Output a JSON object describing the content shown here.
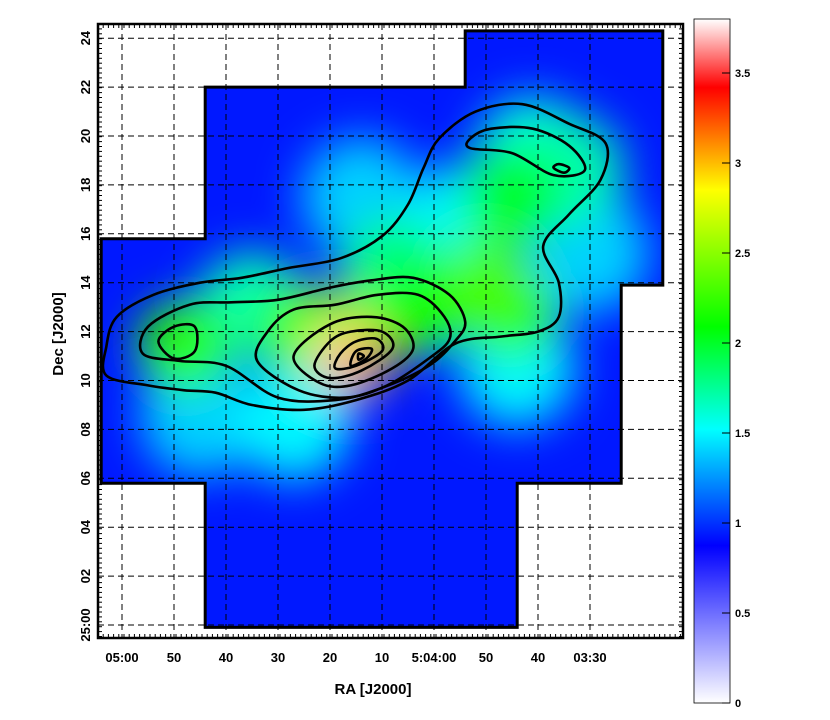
{
  "chart_data": {
    "type": "heatmap",
    "title": "",
    "xlabel": "RA [J2000]",
    "ylabel": "Dec [J2000]",
    "x_ticks": [
      {
        "v": 0,
        "label": "05:00"
      },
      {
        "v": 1,
        "label": "50"
      },
      {
        "v": 2,
        "label": "40"
      },
      {
        "v": 3,
        "label": "30"
      },
      {
        "v": 4,
        "label": "20"
      },
      {
        "v": 5,
        "label": "10"
      },
      {
        "v": 6,
        "label": "5:04:00"
      },
      {
        "v": 7,
        "label": "50"
      },
      {
        "v": 8,
        "label": "40"
      },
      {
        "v": 9,
        "label": "03:30"
      }
    ],
    "y_ticks": [
      {
        "v": 0,
        "label": "25:00"
      },
      {
        "v": 2,
        "label": "02"
      },
      {
        "v": 4,
        "label": "04"
      },
      {
        "v": 6,
        "label": "06"
      },
      {
        "v": 8,
        "label": "08"
      },
      {
        "v": 10,
        "label": "10"
      },
      {
        "v": 12,
        "label": "12"
      },
      {
        "v": 14,
        "label": "14"
      },
      {
        "v": 16,
        "label": "16"
      },
      {
        "v": 18,
        "label": "18"
      },
      {
        "v": 20,
        "label": "20"
      },
      {
        "v": 22,
        "label": "22"
      },
      {
        "v": 24,
        "label": "24"
      }
    ],
    "xlim": [
      -0.5,
      10.5
    ],
    "ylim": [
      -0.3,
      24.6
    ],
    "grid": true,
    "colorbar": {
      "range": [
        0,
        3.8
      ],
      "ticks": [
        0,
        0.5,
        1,
        1.5,
        2,
        2.5,
        3,
        3.5
      ],
      "tick_labels": [
        "0",
        "0.5",
        "1",
        "1.5",
        "2",
        "2.5",
        "3",
        "3.5"
      ],
      "colors": [
        "#ffffff",
        "#0000ff",
        "#00ffff",
        "#00ff00",
        "#ffff00",
        "#ff0000",
        "#ffffff"
      ],
      "color_stops": [
        0,
        0.23,
        0.4,
        0.55,
        0.75,
        0.9,
        1
      ]
    },
    "coverage_outline": [
      [
        -0.4,
        5.8
      ],
      [
        -0.4,
        15.8
      ],
      [
        1.6,
        15.8
      ],
      [
        1.6,
        22.0
      ],
      [
        6.6,
        22.0
      ],
      [
        6.6,
        24.3
      ],
      [
        10.4,
        24.3
      ],
      [
        10.4,
        13.9
      ],
      [
        9.6,
        13.9
      ],
      [
        9.6,
        5.8
      ],
      [
        7.6,
        5.8
      ],
      [
        7.6,
        -0.1
      ],
      [
        1.6,
        -0.1
      ],
      [
        1.6,
        5.8
      ]
    ],
    "emission_peaks": [
      {
        "ra": 4.0,
        "dec": 10.8,
        "value": 3.7
      },
      {
        "ra": 4.5,
        "dec": 10.8,
        "value": 3.0
      },
      {
        "ra": 4.2,
        "dec": 11.8,
        "value": 2.6
      },
      {
        "ra": 1.2,
        "dec": 11.4,
        "value": 2.2
      },
      {
        "ra": 3.5,
        "dec": 12.0,
        "value": 2.2
      },
      {
        "ra": 5.8,
        "dec": 13.0,
        "value": 2.1
      },
      {
        "ra": 7.0,
        "dec": 14.0,
        "value": 2.3
      },
      {
        "ra": 7.5,
        "dec": 12.8,
        "value": 2.2
      },
      {
        "ra": 7.5,
        "dec": 17.5,
        "value": 2.0
      },
      {
        "ra": 7.9,
        "dec": 19.3,
        "value": 1.6
      },
      {
        "ra": 8.6,
        "dec": 18.6,
        "value": 1.7
      },
      {
        "ra": 5.2,
        "dec": 14.5,
        "value": 1.8
      },
      {
        "ra": 2.5,
        "dec": 13.0,
        "value": 1.7
      },
      {
        "ra": 1.5,
        "dec": 8.5,
        "value": 1.4
      },
      {
        "ra": 3.3,
        "dec": 8.3,
        "value": 1.5
      },
      {
        "ra": 7.6,
        "dec": 10.5,
        "value": 1.5
      },
      {
        "ra": 6.6,
        "dec": 16.5,
        "value": 1.5
      },
      {
        "ra": 4.6,
        "dec": 17.5,
        "value": 1.4
      },
      {
        "ra": 9.0,
        "dec": 15.2,
        "value": 1.4
      }
    ],
    "contours": [
      {
        "level": 1,
        "path": [
          [
            1.8,
            9.5
          ],
          [
            2.5,
            9.0
          ],
          [
            3.5,
            8.8
          ],
          [
            4.5,
            9.2
          ],
          [
            5.5,
            10.0
          ],
          [
            6.4,
            11.5
          ],
          [
            7.3,
            11.8
          ],
          [
            8.0,
            12.0
          ],
          [
            8.4,
            12.6
          ],
          [
            8.4,
            14.0
          ],
          [
            8.1,
            15.5
          ],
          [
            8.6,
            16.8
          ],
          [
            9.2,
            18.2
          ],
          [
            9.3,
            19.7
          ],
          [
            8.6,
            20.5
          ],
          [
            7.7,
            21.3
          ],
          [
            6.8,
            21.0
          ],
          [
            6.1,
            19.9
          ],
          [
            5.8,
            18.7
          ],
          [
            5.5,
            17.2
          ],
          [
            5.0,
            15.9
          ],
          [
            4.2,
            15.0
          ],
          [
            3.2,
            14.6
          ],
          [
            2.3,
            14.2
          ],
          [
            1.5,
            14.0
          ],
          [
            0.6,
            13.5
          ],
          [
            -0.1,
            12.6
          ],
          [
            -0.3,
            11.4
          ],
          [
            -0.3,
            10.2
          ],
          [
            0.5,
            9.8
          ],
          [
            1.2,
            9.6
          ]
        ]
      },
      {
        "level": 2,
        "path": [
          [
            2.0,
            10.6
          ],
          [
            3.0,
            9.3
          ],
          [
            4.1,
            9.2
          ],
          [
            5.0,
            9.7
          ],
          [
            5.9,
            10.6
          ],
          [
            6.4,
            11.6
          ],
          [
            6.6,
            12.4
          ],
          [
            6.3,
            13.5
          ],
          [
            5.6,
            14.2
          ],
          [
            4.8,
            14.1
          ],
          [
            4.0,
            13.8
          ],
          [
            3.0,
            13.3
          ],
          [
            2.1,
            13.2
          ],
          [
            1.3,
            13.1
          ],
          [
            0.5,
            12.2
          ],
          [
            0.4,
            11.1
          ],
          [
            1.1,
            10.8
          ]
        ]
      },
      {
        "level": 3,
        "path": [
          [
            2.6,
            10.8
          ],
          [
            3.4,
            9.6
          ],
          [
            4.3,
            9.3
          ],
          [
            5.1,
            9.8
          ],
          [
            5.9,
            10.9
          ],
          [
            6.3,
            11.7
          ],
          [
            6.2,
            12.6
          ],
          [
            5.7,
            13.5
          ],
          [
            4.9,
            13.5
          ],
          [
            4.1,
            13.1
          ],
          [
            3.3,
            12.9
          ],
          [
            2.8,
            12.0
          ]
        ]
      },
      {
        "level": 4,
        "path": [
          [
            3.3,
            11.0
          ],
          [
            3.8,
            9.9
          ],
          [
            4.4,
            9.8
          ],
          [
            5.2,
            10.5
          ],
          [
            5.6,
            11.3
          ],
          [
            5.4,
            12.2
          ],
          [
            4.8,
            12.6
          ],
          [
            4.0,
            12.3
          ]
        ]
      },
      {
        "level": 5,
        "path": [
          [
            3.7,
            10.6
          ],
          [
            4.0,
            10.1
          ],
          [
            4.6,
            10.4
          ],
          [
            5.2,
            11.3
          ],
          [
            5.0,
            12.0
          ],
          [
            4.4,
            12.0
          ],
          [
            4.0,
            11.6
          ]
        ]
      },
      {
        "level": 6,
        "path": [
          [
            4.1,
            10.5
          ],
          [
            4.5,
            10.6
          ],
          [
            5.0,
            11.2
          ],
          [
            4.9,
            11.7
          ],
          [
            4.5,
            11.6
          ],
          [
            4.2,
            11.1
          ]
        ]
      },
      {
        "level": 7,
        "path": [
          [
            4.4,
            10.6
          ],
          [
            4.7,
            10.9
          ],
          [
            4.8,
            11.3
          ],
          [
            4.5,
            11.2
          ]
        ]
      },
      {
        "level": 8,
        "path": [
          [
            4.55,
            10.85
          ],
          [
            4.65,
            11.0
          ],
          [
            4.55,
            11.1
          ]
        ]
      },
      {
        "level": 9,
        "path": [
          [
            0.7,
            11.6
          ],
          [
            1.0,
            10.9
          ],
          [
            1.4,
            11.2
          ],
          [
            1.4,
            12.2
          ],
          [
            1.0,
            12.2
          ]
        ]
      },
      {
        "level": 10,
        "path": [
          [
            6.7,
            19.5
          ],
          [
            7.5,
            19.3
          ],
          [
            8.3,
            18.4
          ],
          [
            8.9,
            18.6
          ],
          [
            8.6,
            19.6
          ],
          [
            7.9,
            20.3
          ],
          [
            7.1,
            20.3
          ],
          [
            6.7,
            19.9
          ]
        ]
      },
      {
        "level": 11,
        "path": [
          [
            8.3,
            18.7
          ],
          [
            8.5,
            18.5
          ],
          [
            8.6,
            18.7
          ],
          [
            8.4,
            18.85
          ]
        ]
      }
    ]
  }
}
